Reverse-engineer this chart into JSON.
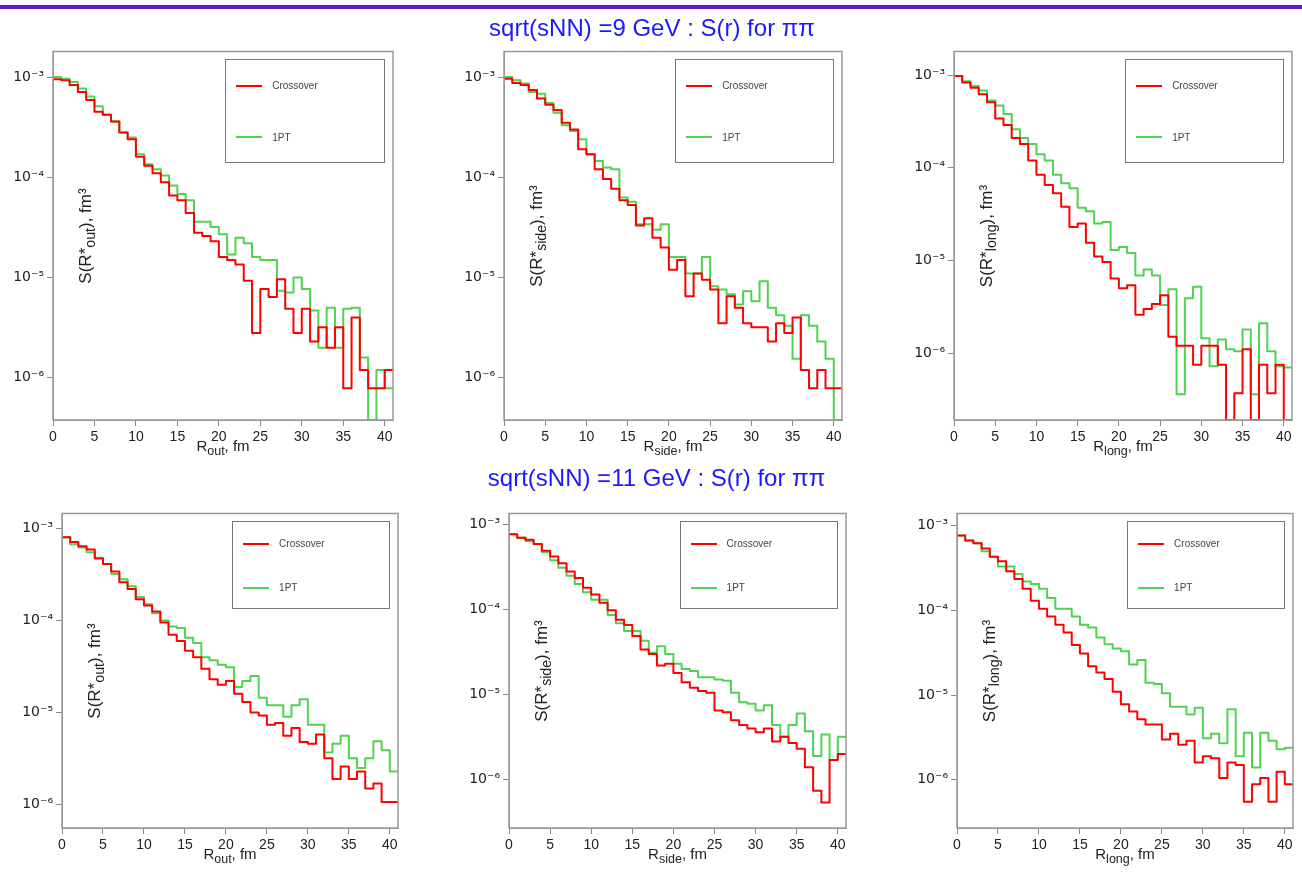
{
  "chart_data": [
    {
      "type": "histogram",
      "xlabel": "R$_{out}$, fm",
      "ylabel": "S(R*$_{out}$), fm³",
      "bins": [
        0,
        1,
        2,
        3,
        4,
        5,
        6,
        7,
        8,
        9,
        10,
        11,
        12,
        13,
        14,
        15,
        16,
        17,
        18,
        19,
        20,
        21,
        22,
        23,
        24,
        25,
        26,
        27,
        28,
        29,
        30,
        31,
        32,
        33,
        34,
        35,
        36,
        37,
        38,
        39,
        40,
        41
      ],
      "xlim": [
        0,
        41
      ],
      "xticks": [
        0,
        5,
        10,
        15,
        20,
        25,
        30,
        35,
        40
      ],
      "ylim": [
        3.8e-07,
        0.0018
      ],
      "yticks": [
        {
          "value": 0.001,
          "label": "10⁻³"
        },
        {
          "value": 0.0001,
          "label": "10⁻⁴"
        },
        {
          "value": 1e-05,
          "label": "10⁻⁵"
        },
        {
          "value": 1e-06,
          "label": "10⁻⁶"
        }
      ],
      "log": "y",
      "grid": false,
      "legend": "top right",
      "series": [
        {
          "name": "Crossover",
          "color": "#ff0000",
          "values": [
            0.00095,
            0.00093,
            0.00083,
            0.00071,
            0.00059,
            0.00045,
            0.00042,
            0.00036,
            0.00028,
            0.00024,
            0.00016,
            0.00013,
            0.00011,
            8.9e-05,
            6.6e-05,
            5.9e-05,
            4.4e-05,
            2.8e-05,
            2.6e-05,
            2.3e-05,
            1.6e-05,
            1.5e-05,
            1.35e-05,
            9.3e-06,
            2.8e-06,
            7.7e-06,
            6.4e-06,
            9.6e-06,
            4.9e-06,
            2.8e-06,
            4.9e-06,
            2.3e-06,
            3.2e-06,
            2e-06,
            3.2e-06,
            7.9e-07,
            4e-06,
            1.2e-06,
            7.9e-07,
            7.9e-07,
            1.2e-06
          ]
        },
        {
          "name": "1PT",
          "color": "#4fd34f",
          "values": [
            0.001,
            0.00096,
            0.00089,
            0.00077,
            0.00064,
            0.00051,
            0.00042,
            0.00036,
            0.00028,
            0.00025,
            0.00017,
            0.000135,
            0.00012,
            0.000104,
            8.3e-05,
            6.8e-05,
            5.9e-05,
            3.6e-05,
            3.6e-05,
            3.2e-05,
            2.7e-05,
            1.7e-05,
            2.5e-05,
            2.2e-05,
            1.6e-05,
            1.5e-05,
            1.5e-05,
            7.4e-06,
            7.1e-06,
            1e-05,
            7.7e-06,
            4.7e-06,
            2e-06,
            5e-06,
            2e-06,
            4.9e-06,
            5e-06,
            1.6e-06,
            null,
            1.2e-06,
            7.9e-07
          ]
        }
      ]
    },
    {
      "type": "histogram",
      "title": "sqrt(sNN) =9 GeV : S(r) for ππ",
      "xlabel": "R$_{side}$, fm",
      "ylabel": "S(R*$_{side}$), fm³",
      "bins": [
        0,
        1,
        2,
        3,
        4,
        5,
        6,
        7,
        8,
        9,
        10,
        11,
        12,
        13,
        14,
        15,
        16,
        17,
        18,
        19,
        20,
        21,
        22,
        23,
        24,
        25,
        26,
        27,
        28,
        29,
        30,
        31,
        32,
        33,
        34,
        35,
        36,
        37,
        38,
        39,
        40,
        41
      ],
      "xlim": [
        0,
        41
      ],
      "xticks": [
        0,
        5,
        10,
        15,
        20,
        25,
        30,
        35,
        40
      ],
      "ylim": [
        3.8e-07,
        0.0018
      ],
      "yticks": [
        {
          "value": 0.001,
          "label": "10⁻³"
        },
        {
          "value": 0.0001,
          "label": "10⁻⁴"
        },
        {
          "value": 1e-05,
          "label": "10⁻⁵"
        },
        {
          "value": 1e-06,
          "label": "10⁻⁶"
        }
      ],
      "log": "y",
      "grid": false,
      "legend": "top right",
      "series": [
        {
          "name": "Crossover",
          "color": "#ff0000",
          "values": [
            0.00096,
            0.00087,
            0.00083,
            0.00074,
            0.00061,
            0.00053,
            0.00047,
            0.00035,
            0.0003,
            0.00019,
            0.00017,
            0.00012,
            9.6e-05,
            7.7e-05,
            5.9e-05,
            5.3e-05,
            3.3e-05,
            3.9e-05,
            2.5e-05,
            2e-05,
            1.2e-05,
            1.5e-05,
            6.5e-06,
            1.1e-05,
            9.5e-06,
            7.6e-06,
            3.5e-06,
            6.5e-06,
            5e-06,
            3.5e-06,
            3.2e-06,
            3.2e-06,
            2.3e-06,
            3.5e-06,
            2.8e-06,
            4e-06,
            1.2e-06,
            7.9e-07,
            1.2e-06,
            7.9e-07,
            7.9e-07
          ]
        },
        {
          "name": "1PT",
          "color": "#4fd34f",
          "values": [
            0.001,
            0.00093,
            0.00086,
            0.00071,
            0.00068,
            0.00055,
            0.00044,
            0.00033,
            0.00029,
            0.00024,
            0.00017,
            0.000145,
            0.000125,
            0.00012,
            6.3e-05,
            5.7e-05,
            3.4e-05,
            3.4e-05,
            3e-05,
            3.4e-05,
            1.6e-05,
            1.6e-05,
            1.1e-05,
            1.1e-05,
            1.6e-05,
            8.2e-06,
            7.6e-06,
            6.8e-06,
            5.4e-06,
            7.3e-06,
            5.8e-06,
            9.2e-06,
            5e-06,
            4.2e-06,
            3.3e-06,
            1.55e-06,
            4.2e-06,
            3.3e-06,
            2.3e-06,
            1.55e-06,
            null
          ]
        }
      ]
    },
    {
      "type": "histogram",
      "xlabel": "R$_{long}$, fm",
      "ylabel": "S(R*$_{long}$), fm³",
      "bins": [
        0,
        1,
        2,
        3,
        4,
        5,
        6,
        7,
        8,
        9,
        10,
        11,
        12,
        13,
        14,
        15,
        16,
        17,
        18,
        19,
        20,
        21,
        22,
        23,
        24,
        25,
        26,
        27,
        28,
        29,
        30,
        31,
        32,
        33,
        34,
        35,
        36,
        37,
        38,
        39,
        40,
        41
      ],
      "xlim": [
        0,
        41
      ],
      "xticks": [
        0,
        5,
        10,
        15,
        20,
        25,
        30,
        35,
        40
      ],
      "ylim": [
        1.9e-07,
        0.0018
      ],
      "yticks": [
        {
          "value": 0.001,
          "label": "10⁻³"
        },
        {
          "value": 0.0001,
          "label": "10⁻⁴"
        },
        {
          "value": 1e-05,
          "label": "10⁻⁵"
        },
        {
          "value": 1e-06,
          "label": "10⁻⁶"
        }
      ],
      "log": "y",
      "grid": false,
      "legend": "top right",
      "series": [
        {
          "name": "Crossover",
          "color": "#ff0000",
          "values": [
            0.00098,
            0.00083,
            0.00073,
            0.00062,
            0.00051,
            0.00034,
            0.00029,
            0.00021,
            0.00018,
            0.00012,
            8.4e-05,
            6.5e-05,
            5.3e-05,
            3.8e-05,
            2.3e-05,
            2.5e-05,
            1.55e-05,
            1.1e-05,
            9.6e-06,
            6.4e-06,
            5e-06,
            5.4e-06,
            2.6e-06,
            3e-06,
            3.4e-06,
            4.2e-06,
            1.5e-06,
            1.2e-06,
            1.2e-06,
            7.5e-07,
            1.2e-06,
            1.2e-06,
            7.5e-07,
            null,
            3.7e-07,
            1.1e-06,
            null,
            7.5e-07,
            3.7e-07,
            7.5e-07,
            null
          ]
        },
        {
          "name": "1PT",
          "color": "#4fd34f",
          "values": [
            0.00098,
            0.00086,
            0.00076,
            0.00068,
            0.00053,
            0.00047,
            0.00038,
            0.00026,
            0.00021,
            0.00018,
            0.00014,
            0.00012,
            8.4e-05,
            6.8e-05,
            6e-05,
            3.7e-05,
            3.4e-05,
            2.5e-05,
            2.6e-05,
            1.3e-05,
            1.4e-05,
            1.2e-05,
            6.9e-06,
            8e-06,
            6.9e-06,
            3.3e-06,
            4.9e-06,
            3.6e-07,
            3.9e-06,
            5.2e-06,
            1.45e-06,
            7.2e-07,
            1.4e-06,
            1.1e-06,
            1.05e-06,
            1.8e-06,
            3.6e-07,
            2.1e-06,
            1.05e-06,
            7.2e-07,
            7e-07
          ]
        }
      ]
    },
    {
      "type": "histogram",
      "xlabel": "R$_{out}$, fm",
      "ylabel": "S(R*$_{out}$), fm³",
      "bins": [
        0,
        1,
        2,
        3,
        4,
        5,
        6,
        7,
        8,
        9,
        10,
        11,
        12,
        13,
        14,
        15,
        16,
        17,
        18,
        19,
        20,
        21,
        22,
        23,
        24,
        25,
        26,
        27,
        28,
        29,
        30,
        31,
        32,
        33,
        34,
        35,
        36,
        37,
        38,
        39,
        40,
        41
      ],
      "xlim": [
        0,
        41
      ],
      "xticks": [
        0,
        5,
        10,
        15,
        20,
        25,
        30,
        35,
        40
      ],
      "ylim": [
        5.6e-07,
        0.00145
      ],
      "yticks": [
        {
          "value": 0.001,
          "label": "10⁻³"
        },
        {
          "value": 0.0001,
          "label": "10⁻⁴"
        },
        {
          "value": 1e-05,
          "label": "10⁻⁵"
        },
        {
          "value": 1e-06,
          "label": "10⁻⁶"
        }
      ],
      "log": "y",
      "grid": false,
      "legend": "top right",
      "series": [
        {
          "name": "Crossover",
          "color": "#ff0000",
          "values": [
            0.0008,
            0.00071,
            0.00064,
            0.00059,
            0.00047,
            0.00041,
            0.00034,
            0.00026,
            0.00022,
            0.00017,
            0.000145,
            0.000125,
            9.5e-05,
            7e-05,
            6e-05,
            4.7e-05,
            4e-05,
            3e-05,
            2.3e-05,
            2e-05,
            2.2e-05,
            1.6e-05,
            1.3e-05,
            1e-05,
            9.3e-06,
            7.4e-06,
            7.7e-06,
            5.6e-06,
            6.8e-06,
            4.8e-06,
            4.6e-06,
            5.8e-06,
            3.2e-06,
            1.9e-06,
            2.6e-06,
            1.9e-06,
            2.3e-06,
            1.5e-06,
            1.7e-06,
            1.07e-06,
            1.07e-06
          ]
        },
        {
          "name": "1PT",
          "color": "#4fd34f",
          "values": [
            0.0008,
            0.00067,
            0.00062,
            0.00055,
            0.00048,
            0.00041,
            0.00032,
            0.00028,
            0.000235,
            0.00018,
            0.00015,
            0.00012,
            0.0001,
            8.6e-05,
            8.3e-05,
            6.5e-05,
            5.7e-05,
            4e-05,
            3.7e-05,
            3.3e-05,
            3.1e-05,
            1.9e-05,
            2.2e-05,
            2.5e-05,
            1.45e-05,
            1.2e-05,
            1.2e-05,
            9e-06,
            1.2e-05,
            1.4e-05,
            7.4e-06,
            7.4e-06,
            3.7e-06,
            4.6e-06,
            5.6e-06,
            3.2e-06,
            2.5e-06,
            3.2e-06,
            4.9e-06,
            3.9e-06,
            2.3e-06
          ]
        }
      ]
    },
    {
      "type": "histogram",
      "title": "sqrt(sNN) =11 GeV : S(r) for ππ",
      "xlabel": "R$_{side}$, fm",
      "ylabel": "S(R*$_{side}$), fm³",
      "bins": [
        0,
        1,
        2,
        3,
        4,
        5,
        6,
        7,
        8,
        9,
        10,
        11,
        12,
        13,
        14,
        15,
        16,
        17,
        18,
        19,
        20,
        21,
        22,
        23,
        24,
        25,
        26,
        27,
        28,
        29,
        30,
        31,
        32,
        33,
        34,
        35,
        36,
        37,
        38,
        39,
        40,
        41
      ],
      "xlim": [
        0,
        41
      ],
      "xticks": [
        0,
        5,
        10,
        15,
        20,
        25,
        30,
        35,
        40
      ],
      "ylim": [
        2.7e-07,
        0.00135
      ],
      "yticks": [
        {
          "value": 0.001,
          "label": "10⁻³"
        },
        {
          "value": 0.0001,
          "label": "10⁻⁴"
        },
        {
          "value": 1e-05,
          "label": "10⁻⁵"
        },
        {
          "value": 1e-06,
          "label": "10⁻⁶"
        }
      ],
      "log": "y",
      "grid": false,
      "legend": "top right",
      "series": [
        {
          "name": "Crossover",
          "color": "#ff0000",
          "values": [
            0.00077,
            0.0007,
            0.00066,
            0.00059,
            0.00049,
            0.00042,
            0.00035,
            0.00028,
            0.000235,
            0.00018,
            0.00015,
            0.00012,
            9.8e-05,
            7.6e-05,
            6.6e-05,
            4.9e-05,
            3.4e-05,
            3e-05,
            2.2e-05,
            2.3e-05,
            1.8e-05,
            1.4e-05,
            1.2e-05,
            1.1e-05,
            1.05e-05,
            6.5e-06,
            6.2e-06,
            5e-06,
            4.4e-06,
            4e-06,
            3.6e-06,
            4e-06,
            2.8e-06,
            3.2e-06,
            2.7e-06,
            2.3e-06,
            1.4e-06,
            7.4e-07,
            5.4e-07,
            1.7e-06,
            2e-06
          ]
        },
        {
          "name": "1PT",
          "color": "#4fd34f",
          "values": [
            0.00077,
            0.0007,
            0.00064,
            0.00059,
            0.00047,
            0.00038,
            0.00031,
            0.00025,
            0.0002,
            0.00016,
            0.00013,
            0.00013,
            8.6e-05,
            6.9e-05,
            5.6e-05,
            5.6e-05,
            4.3e-05,
            3.1e-05,
            3.7e-05,
            3e-05,
            2.3e-05,
            2e-05,
            1.9e-05,
            1.6e-05,
            1.6e-05,
            1.5e-05,
            1.45e-05,
            1.05e-05,
            8.1e-06,
            7.8e-06,
            6.5e-06,
            7.5e-06,
            4.4e-06,
            3.2e-06,
            4.4e-06,
            6e-06,
            3.7e-06,
            1.9e-06,
            3.4e-06,
            1.7e-06,
            3.2e-06
          ]
        }
      ]
    },
    {
      "type": "histogram",
      "xlabel": "R$_{long}$, fm",
      "ylabel": "S(R*$_{long}$), fm³",
      "bins": [
        0,
        1,
        2,
        3,
        4,
        5,
        6,
        7,
        8,
        9,
        10,
        11,
        12,
        13,
        14,
        15,
        16,
        17,
        18,
        19,
        20,
        21,
        22,
        23,
        24,
        25,
        26,
        27,
        28,
        29,
        30,
        31,
        32,
        33,
        34,
        35,
        36,
        37,
        38,
        39,
        40,
        41
      ],
      "xlim": [
        0,
        41
      ],
      "xticks": [
        0,
        5,
        10,
        15,
        20,
        25,
        30,
        35,
        40
      ],
      "ylim": [
        2.7e-07,
        0.0014
      ],
      "yticks": [
        {
          "value": 0.001,
          "label": "10⁻³"
        },
        {
          "value": 0.0001,
          "label": "10⁻⁴"
        },
        {
          "value": 1e-05,
          "label": "10⁻⁵"
        },
        {
          "value": 1e-06,
          "label": "10⁻⁶"
        }
      ],
      "log": "y",
      "grid": false,
      "legend": "top right",
      "series": [
        {
          "name": "Crossover",
          "color": "#ff0000",
          "values": [
            0.00077,
            0.00067,
            0.00062,
            0.00054,
            0.00043,
            0.00038,
            0.00029,
            0.000235,
            0.00018,
            0.00013,
            0.000105,
            8.5e-05,
            6.8e-05,
            5.5e-05,
            3.9e-05,
            3.1e-05,
            2.2e-05,
            1.85e-05,
            1.55e-05,
            1.1e-05,
            7.8e-06,
            6.4e-06,
            5.2e-06,
            4.5e-06,
            4.5e-06,
            3e-06,
            3.5e-06,
            2.6e-06,
            2.9e-06,
            1.6e-06,
            1.9e-06,
            1.8e-06,
            1.05e-06,
            1.6e-06,
            1.5e-06,
            5.5e-07,
            8.9e-07,
            1.05e-06,
            5.5e-07,
            1.25e-06,
            8.9e-07
          ]
        },
        {
          "name": "1PT",
          "color": "#4fd34f",
          "values": [
            0.00077,
            0.00067,
            0.00062,
            0.0005,
            0.00043,
            0.00033,
            0.00033,
            0.00027,
            0.00022,
            0.000205,
            0.00018,
            0.00014,
            0.000105,
            0.000105,
            8.5e-05,
            6.8e-05,
            6.3e-05,
            4.8e-05,
            4e-05,
            3.55e-05,
            3.3e-05,
            2.3e-05,
            2.6e-05,
            1.4e-05,
            1.35e-05,
            1.05e-05,
            7.3e-06,
            7.3e-06,
            5.9e-06,
            7.1e-06,
            3.1e-06,
            3.5e-06,
            2.7e-06,
            6.8e-06,
            1.9e-06,
            3.6e-06,
            1.4e-06,
            3.6e-06,
            2.9e-06,
            2.3e-06,
            2.4e-06
          ]
        }
      ]
    }
  ]
}
